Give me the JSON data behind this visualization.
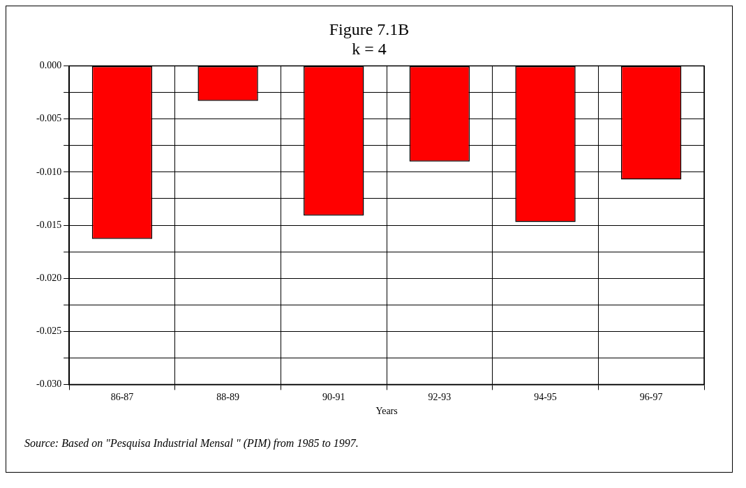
{
  "chart_data": {
    "type": "bar",
    "title": [
      "Figure 7.1B",
      "k = 4"
    ],
    "xlabel": "Years",
    "categories": [
      "86-87",
      "88-89",
      "90-91",
      "92-93",
      "94-95",
      "96-97"
    ],
    "values": [
      -0.0163,
      -0.0033,
      -0.0141,
      -0.009,
      -0.0147,
      -0.0107
    ],
    "color": "#ff0000",
    "ylim": [
      -0.03,
      0
    ],
    "yticks": [
      {
        "value": 0,
        "label": "0.000"
      },
      {
        "value": -0.0025,
        "label": null
      },
      {
        "value": -0.005,
        "label": "-0.005"
      },
      {
        "value": -0.0075,
        "label": null
      },
      {
        "value": -0.01,
        "label": "-0.010"
      },
      {
        "value": -0.0125,
        "label": null
      },
      {
        "value": -0.015,
        "label": "-0.015"
      },
      {
        "value": -0.0175,
        "label": null
      },
      {
        "value": -0.02,
        "label": "-0.020"
      },
      {
        "value": -0.0225,
        "label": null
      },
      {
        "value": -0.025,
        "label": "-0.025"
      },
      {
        "value": -0.0275,
        "label": null
      },
      {
        "value": -0.03,
        "label": "-0.030"
      }
    ],
    "grid": true,
    "legend": false,
    "annotations": [
      "Source: Based on \"Pesquisa Industrial Mensal \" (PIM) from 1985 to 1997."
    ]
  }
}
